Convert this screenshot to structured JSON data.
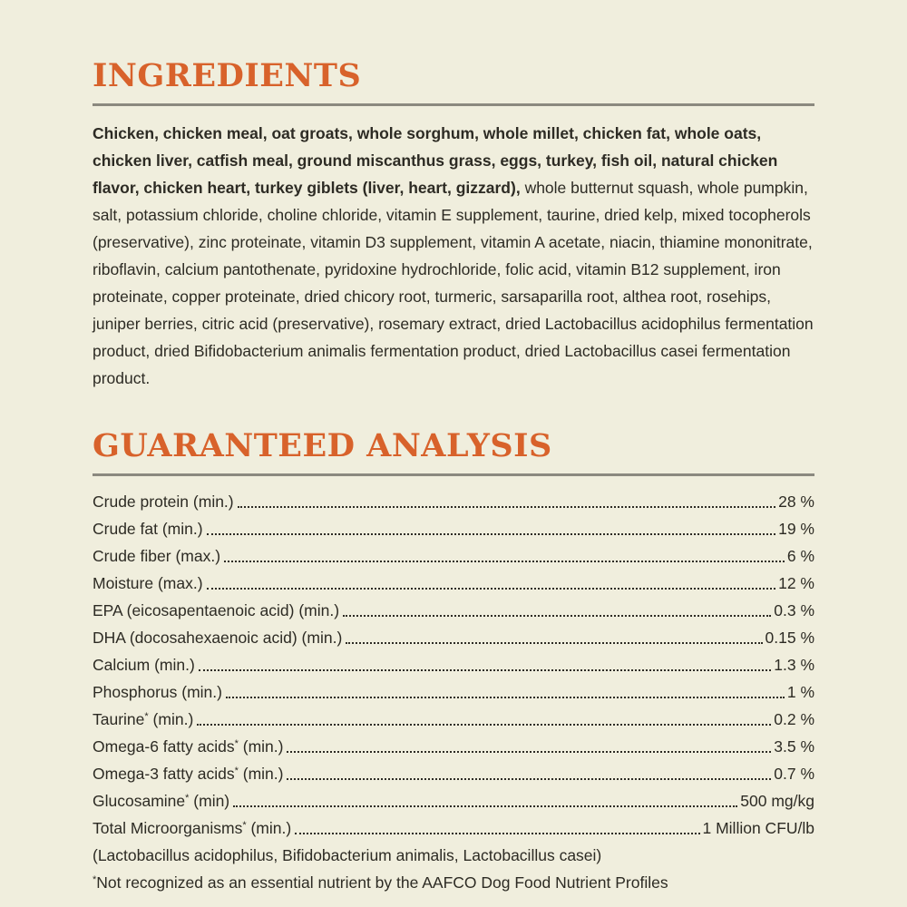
{
  "page": {
    "background_color": "#f0eedd",
    "accent_color": "#d8622b",
    "text_color": "#2d2b24",
    "rule_color": "#8b897f"
  },
  "ingredients": {
    "heading": "INGREDIENTS",
    "bold_text": "Chicken, chicken meal, oat groats, whole sorghum, whole millet, chicken fat, whole oats, chicken liver, catfish meal, ground miscanthus grass, eggs, turkey, fish oil, natural chicken flavor, chicken heart, turkey giblets (liver, heart, gizzard),",
    "regular_text": " whole butternut squash, whole pumpkin, salt, potassium chloride, choline chloride, vitamin E supplement, taurine, dried kelp, mixed tocopherols (preservative), zinc proteinate, vitamin D3 supplement, vitamin A acetate, niacin, thiamine mononitrate, riboflavin, calcium pantothenate, pyridoxine hydrochloride, folic acid, vitamin B12 supplement, iron proteinate, copper proteinate, dried chicory root, turmeric, sarsaparilla root, althea root, rosehips, juniper berries, citric acid (preservative), rosemary extract, dried Lactobacillus acidophilus fermentation product, dried Bifidobacterium animalis fermentation product, dried Lactobacillus casei fermentation product."
  },
  "analysis": {
    "heading": "GUARANTEED ANALYSIS",
    "star_mark": "*",
    "rows": [
      {
        "name": "Crude protein",
        "starred": false,
        "qualifier": "(min.)",
        "value": "28 %"
      },
      {
        "name": "Crude fat",
        "starred": false,
        "qualifier": "(min.)",
        "value": "19 %"
      },
      {
        "name": "Crude fiber",
        "starred": false,
        "qualifier": "(max.)",
        "value": "6 %"
      },
      {
        "name": "Moisture",
        "starred": false,
        "qualifier": "(max.)",
        "value": "12 %"
      },
      {
        "name": "EPA (eicosapentaenoic acid)",
        "starred": false,
        "qualifier": "(min.)",
        "value": "0.3 %"
      },
      {
        "name": "DHA (docosahexaenoic acid)",
        "starred": false,
        "qualifier": "(min.)",
        "value": "0.15 %"
      },
      {
        "name": "Calcium",
        "starred": false,
        "qualifier": "(min.)",
        "value": "1.3 %"
      },
      {
        "name": "Phosphorus",
        "starred": false,
        "qualifier": "(min.)",
        "value": "1 %"
      },
      {
        "name": "Taurine",
        "starred": true,
        "qualifier": "(min.)",
        "value": "0.2 %"
      },
      {
        "name": "Omega-6 fatty acids",
        "starred": true,
        "qualifier": "(min.)",
        "value": "3.5 %"
      },
      {
        "name": "Omega-3 fatty acids",
        "starred": true,
        "qualifier": "(min.)",
        "value": "0.7 %"
      },
      {
        "name": "Glucosamine",
        "starred": true,
        "qualifier": "(min)",
        "value": "500 mg/kg"
      },
      {
        "name": "Total Microorganisms",
        "starred": true,
        "qualifier": "(min.)",
        "value": "1 Million CFU/lb"
      }
    ],
    "microorganisms_detail": "(Lactobacillus acidophilus, Bifidobacterium animalis, Lactobacillus casei)",
    "footnote_mark": "*",
    "footnote_text": "Not recognized as an essential nutrient by the AAFCO Dog Food Nutrient Profiles"
  }
}
